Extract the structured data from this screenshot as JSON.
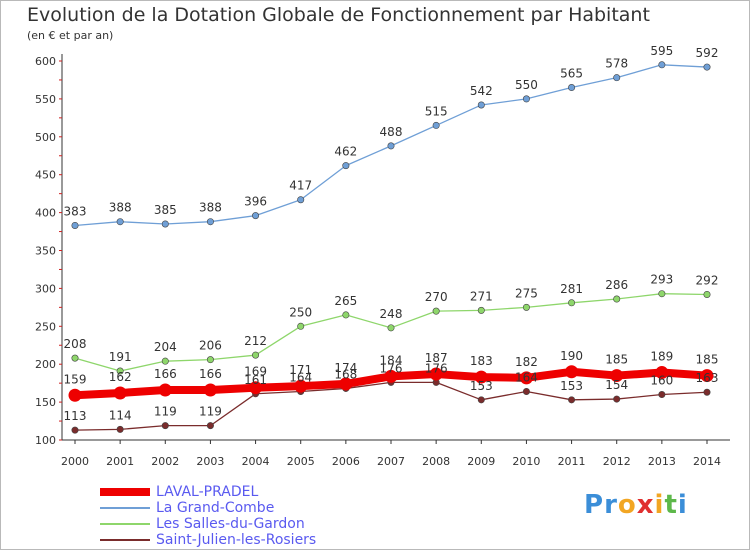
{
  "title": "Evolution de la Dotation Globale de Fonctionnement par Habitant",
  "subtitle": "(en € et par an)",
  "logo": {
    "text": "Proxiti",
    "letter_colors": [
      "#3b8ed8",
      "#3b8ed8",
      "#f2a623",
      "#e03030",
      "#f2a623",
      "#5db84a",
      "#3b8ed8"
    ]
  },
  "chart_data": {
    "type": "line",
    "title": "Evolution de la Dotation Globale de Fonctionnement par Habitant",
    "subtitle": "(en € et par an)",
    "x": [
      "2000",
      "2001",
      "2002",
      "2003",
      "2004",
      "2005",
      "2006",
      "2007",
      "2008",
      "2009",
      "2010",
      "2011",
      "2012",
      "2013",
      "2014"
    ],
    "ylim": [
      100,
      600
    ],
    "yticks": [
      100,
      150,
      200,
      250,
      300,
      350,
      400,
      450,
      500,
      550,
      600
    ],
    "grid": false,
    "legend_position": "bottom-left",
    "series": [
      {
        "name": "LAVAL-PRADEL",
        "color": "#ee0000",
        "values": [
          159,
          162,
          166,
          166,
          169,
          171,
          174,
          184,
          187,
          183,
          182,
          190,
          185,
          189,
          185
        ]
      },
      {
        "name": "La Grand-Combe",
        "color": "#6f9fd6",
        "values": [
          383,
          388,
          385,
          388,
          396,
          417,
          462,
          488,
          515,
          542,
          550,
          565,
          578,
          595,
          592
        ]
      },
      {
        "name": "Les Salles-du-Gardon",
        "color": "#8ed66b",
        "values": [
          208,
          191,
          204,
          206,
          212,
          250,
          265,
          248,
          270,
          271,
          275,
          281,
          286,
          293,
          292
        ]
      },
      {
        "name": "Saint-Julien-les-Rosiers",
        "color": "#7a2c2c",
        "values": [
          113,
          114,
          119,
          119,
          161,
          164,
          168,
          176,
          176,
          153,
          164,
          153,
          154,
          160,
          163
        ]
      }
    ]
  }
}
